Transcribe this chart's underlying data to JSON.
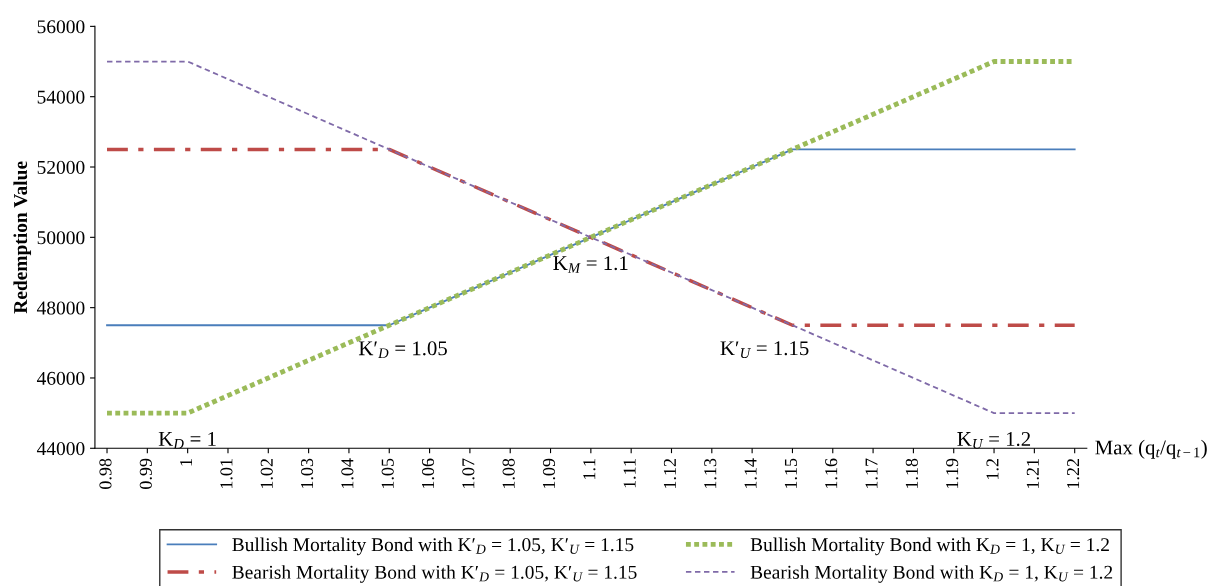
{
  "chart_data": {
    "type": "line",
    "ylabel": "Redemption Value",
    "xlabel": "Max (q$_{t}$/q$_{t−1}$)",
    "categories": [
      "0.98",
      "0.99",
      "1",
      "1.01",
      "1.02",
      "1.03",
      "1.04",
      "1.05",
      "1.06",
      "1.07",
      "1.08",
      "1.09",
      "1.1",
      "1.11",
      "1.12",
      "1.13",
      "1.14",
      "1.15",
      "1.16",
      "1.17",
      "1.18",
      "1.19",
      "1.2",
      "1.21",
      "1.22"
    ],
    "ylim": [
      44000,
      56000
    ],
    "yticks": [
      44000,
      46000,
      48000,
      50000,
      52000,
      54000,
      56000
    ],
    "grid": false,
    "legend": "bottom",
    "series": [
      {
        "name": "Bullish Mortality Bond with K′$_{D}$ = 1.05, K′$_{U}$ = 1.15",
        "color": "#4a7ebb",
        "line_style": "solid",
        "values": [
          47500,
          47500,
          47500,
          47500,
          47500,
          47500,
          47500,
          47500,
          48000,
          48500,
          49000,
          49500,
          50000,
          50500,
          51000,
          51500,
          52000,
          52500,
          52500,
          52500,
          52500,
          52500,
          52500,
          52500,
          52500
        ]
      },
      {
        "name": "Bearish Mortality Bond with K′$_{D}$ = 1.05, K′$_{U}$ = 1.15",
        "color": "#be4b48",
        "line_style": "dashdot",
        "values": [
          52500,
          52500,
          52500,
          52500,
          52500,
          52500,
          52500,
          52500,
          52000,
          51500,
          51000,
          50500,
          50000,
          49500,
          49000,
          48500,
          48000,
          47500,
          47500,
          47500,
          47500,
          47500,
          47500,
          47500,
          47500
        ]
      },
      {
        "name": "Bullish Mortality Bond with K$_{D}$ = 1, K$_{U}$ = 1.2",
        "color": "#9bbb59",
        "line_style": "dotted",
        "values": [
          45000,
          45000,
          45000,
          45500,
          46000,
          46500,
          47000,
          47500,
          48000,
          48500,
          49000,
          49500,
          50000,
          50500,
          51000,
          51500,
          52000,
          52500,
          53000,
          53500,
          54000,
          54500,
          55000,
          55000,
          55000
        ]
      },
      {
        "name": "Bearish Mortality Bond with K$_{D}$ = 1, K$_{U}$ = 1.2",
        "color": "#7f6aa8",
        "line_style": "dashed",
        "values": [
          55000,
          55000,
          55000,
          54500,
          54000,
          53500,
          53000,
          52500,
          52000,
          51500,
          51000,
          50500,
          50000,
          49500,
          49000,
          48500,
          48000,
          47500,
          47000,
          46500,
          46000,
          45500,
          45000,
          45000,
          45000
        ]
      }
    ],
    "annotations": [
      {
        "text": "K$_{D}$ = 1",
        "x": "1",
        "y": 45000
      },
      {
        "text": "K′$_{D}$ = 1.05",
        "x": "1.05",
        "y": 47500
      },
      {
        "text": "K$_{M}$ = 1.1",
        "x": "1.1",
        "y": 50000
      },
      {
        "text": "K′$_{U}$ = 1.15",
        "x": "1.15",
        "y": 47500
      },
      {
        "text": "K$_{U}$ = 1.2",
        "x": "1.2",
        "y": 45000
      }
    ]
  }
}
